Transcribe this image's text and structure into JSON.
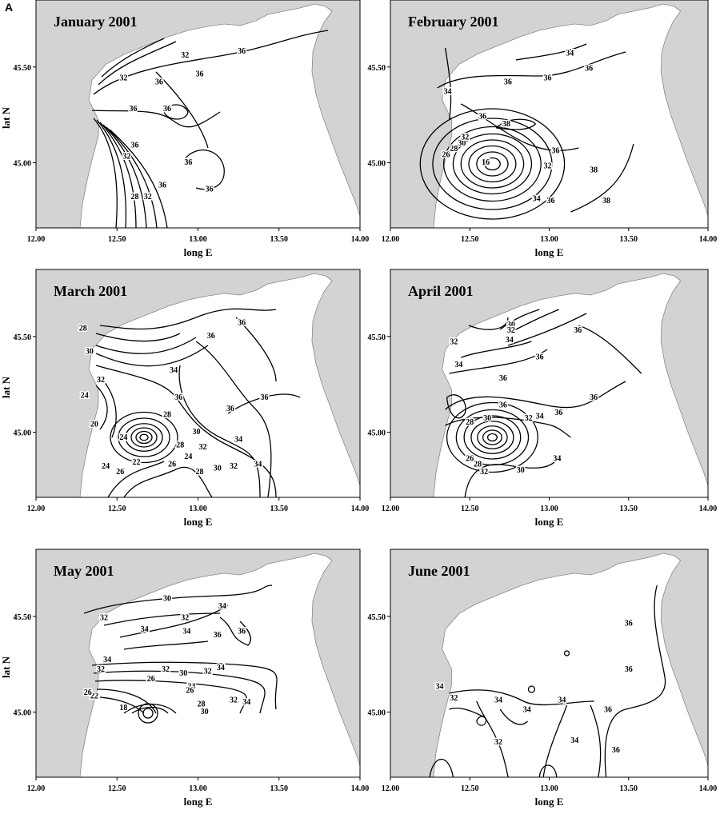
{
  "figure_label": "A",
  "axes": {
    "x_label": "long E",
    "y_label": "lat N",
    "xlim": [
      12,
      14
    ],
    "ylim": [
      44.66,
      45.85
    ],
    "xticks": [
      {
        "value": 12,
        "label": "12.00"
      },
      {
        "value": 12.5,
        "label": "12.50"
      },
      {
        "value": 13,
        "label": "13.00"
      },
      {
        "value": 13.5,
        "label": "13.50"
      },
      {
        "value": 14,
        "label": "14.00"
      }
    ],
    "yticks": [
      {
        "value": 45.5,
        "label": "45.50"
      },
      {
        "value": 45,
        "label": "45.00"
      }
    ]
  },
  "panels": [
    {
      "title": "January 2001",
      "contour_labels": [
        {
          "level": 36,
          "lon": 13.27,
          "lat": 45.58
        },
        {
          "level": 32,
          "lon": 12.92,
          "lat": 45.56
        },
        {
          "level": 36,
          "lon": 13.01,
          "lat": 45.46
        },
        {
          "level": 32,
          "lon": 12.54,
          "lat": 45.44
        },
        {
          "level": 36,
          "lon": 12.76,
          "lat": 45.42
        },
        {
          "level": 36,
          "lon": 12.6,
          "lat": 45.28
        },
        {
          "level": 36,
          "lon": 12.81,
          "lat": 45.28
        },
        {
          "level": 36,
          "lon": 12.61,
          "lat": 45.09
        },
        {
          "level": 32,
          "lon": 12.56,
          "lat": 45.03
        },
        {
          "level": 36,
          "lon": 12.94,
          "lat": 45.0
        },
        {
          "level": 36,
          "lon": 13.07,
          "lat": 44.86
        },
        {
          "level": 36,
          "lon": 12.78,
          "lat": 44.88
        },
        {
          "level": 28,
          "lon": 12.61,
          "lat": 44.82
        },
        {
          "level": 32,
          "lon": 12.69,
          "lat": 44.82
        }
      ]
    },
    {
      "title": "February 2001",
      "contour_labels": [
        {
          "level": 34,
          "lon": 13.13,
          "lat": 45.57
        },
        {
          "level": 36,
          "lon": 13.25,
          "lat": 45.49
        },
        {
          "level": 36,
          "lon": 12.99,
          "lat": 45.44
        },
        {
          "level": 36,
          "lon": 12.74,
          "lat": 45.42
        },
        {
          "level": 34,
          "lon": 12.36,
          "lat": 45.37
        },
        {
          "level": 38,
          "lon": 12.73,
          "lat": 45.2
        },
        {
          "level": 36,
          "lon": 12.58,
          "lat": 45.24
        },
        {
          "level": 36,
          "lon": 13.04,
          "lat": 45.06
        },
        {
          "level": 32,
          "lon": 12.99,
          "lat": 44.98
        },
        {
          "level": 38,
          "lon": 13.28,
          "lat": 44.96
        },
        {
          "level": 38,
          "lon": 13.36,
          "lat": 44.8
        },
        {
          "level": 36,
          "lon": 13.01,
          "lat": 44.8
        },
        {
          "level": 34,
          "lon": 12.92,
          "lat": 44.81
        },
        {
          "level": 16,
          "lon": 12.6,
          "lat": 45.0
        },
        {
          "level": 30,
          "lon": 12.45,
          "lat": 45.1
        },
        {
          "level": 28,
          "lon": 12.4,
          "lat": 45.07
        },
        {
          "level": 26,
          "lon": 12.35,
          "lat": 45.04
        },
        {
          "level": 32,
          "lon": 12.47,
          "lat": 45.13
        }
      ]
    },
    {
      "title": "March 2001",
      "contour_labels": [
        {
          "level": 36,
          "lon": 13.27,
          "lat": 45.57
        },
        {
          "level": 36,
          "lon": 13.08,
          "lat": 45.5
        },
        {
          "level": 30,
          "lon": 12.33,
          "lat": 45.42
        },
        {
          "level": 28,
          "lon": 12.29,
          "lat": 45.54
        },
        {
          "level": 34,
          "lon": 12.85,
          "lat": 45.32
        },
        {
          "level": 36,
          "lon": 12.88,
          "lat": 45.18
        },
        {
          "level": 36,
          "lon": 13.2,
          "lat": 45.12
        },
        {
          "level": 36,
          "lon": 13.41,
          "lat": 45.18
        },
        {
          "level": 32,
          "lon": 12.4,
          "lat": 45.27
        },
        {
          "level": 24,
          "lon": 12.3,
          "lat": 45.19
        },
        {
          "level": 34,
          "lon": 13.25,
          "lat": 44.96
        },
        {
          "level": 32,
          "lon": 13.03,
          "lat": 44.92
        },
        {
          "level": 30,
          "lon": 12.99,
          "lat": 45.0
        },
        {
          "level": 28,
          "lon": 12.89,
          "lat": 44.93
        },
        {
          "level": 28,
          "lon": 12.81,
          "lat": 45.09
        },
        {
          "level": 24,
          "lon": 12.54,
          "lat": 44.97
        },
        {
          "level": 22,
          "lon": 12.62,
          "lat": 44.84
        },
        {
          "level": 24,
          "lon": 12.94,
          "lat": 44.87
        },
        {
          "level": 26,
          "lon": 12.84,
          "lat": 44.83
        },
        {
          "level": 28,
          "lon": 13.01,
          "lat": 44.79
        },
        {
          "level": 30,
          "lon": 13.12,
          "lat": 44.81
        },
        {
          "level": 32,
          "lon": 13.22,
          "lat": 44.82
        },
        {
          "level": 34,
          "lon": 13.37,
          "lat": 44.83
        },
        {
          "level": 24,
          "lon": 12.43,
          "lat": 44.82
        },
        {
          "level": 26,
          "lon": 12.52,
          "lat": 44.79
        },
        {
          "level": 20,
          "lon": 12.36,
          "lat": 45.04
        }
      ]
    },
    {
      "title": "April 2001",
      "contour_labels": [
        {
          "level": 30,
          "lon": 12.76,
          "lat": 45.56
        },
        {
          "level": 32,
          "lon": 12.76,
          "lat": 45.53
        },
        {
          "level": 34,
          "lon": 12.75,
          "lat": 45.48
        },
        {
          "level": 36,
          "lon": 12.94,
          "lat": 45.39
        },
        {
          "level": 36,
          "lon": 13.18,
          "lat": 45.53
        },
        {
          "level": 32,
          "lon": 12.4,
          "lat": 45.47
        },
        {
          "level": 34,
          "lon": 12.43,
          "lat": 45.35
        },
        {
          "level": 36,
          "lon": 12.71,
          "lat": 45.28
        },
        {
          "level": 36,
          "lon": 12.71,
          "lat": 45.14
        },
        {
          "level": 36,
          "lon": 13.06,
          "lat": 45.1
        },
        {
          "level": 36,
          "lon": 13.28,
          "lat": 45.18
        },
        {
          "level": 30,
          "lon": 12.61,
          "lat": 45.07
        },
        {
          "level": 32,
          "lon": 12.87,
          "lat": 45.07
        },
        {
          "level": 34,
          "lon": 12.94,
          "lat": 45.08
        },
        {
          "level": 28,
          "lon": 12.5,
          "lat": 45.05
        },
        {
          "level": 28,
          "lon": 12.55,
          "lat": 44.83
        },
        {
          "level": 32,
          "lon": 12.59,
          "lat": 44.79
        },
        {
          "level": 30,
          "lon": 12.82,
          "lat": 44.8
        },
        {
          "level": 34,
          "lon": 13.05,
          "lat": 44.86
        },
        {
          "level": 26,
          "lon": 12.5,
          "lat": 44.86
        }
      ]
    },
    {
      "title": "May 2001",
      "contour_labels": [
        {
          "level": 32,
          "lon": 12.42,
          "lat": 45.49
        },
        {
          "level": 30,
          "lon": 12.81,
          "lat": 45.59
        },
        {
          "level": 32,
          "lon": 12.92,
          "lat": 45.49
        },
        {
          "level": 34,
          "lon": 13.15,
          "lat": 45.55
        },
        {
          "level": 34,
          "lon": 12.67,
          "lat": 45.43
        },
        {
          "level": 34,
          "lon": 12.93,
          "lat": 45.42
        },
        {
          "level": 36,
          "lon": 13.12,
          "lat": 45.4
        },
        {
          "level": 36,
          "lon": 13.27,
          "lat": 45.42
        },
        {
          "level": 34,
          "lon": 12.44,
          "lat": 45.27
        },
        {
          "level": 32,
          "lon": 12.4,
          "lat": 45.22
        },
        {
          "level": 34,
          "lon": 13.14,
          "lat": 45.23
        },
        {
          "level": 32,
          "lon": 13.06,
          "lat": 45.21
        },
        {
          "level": 30,
          "lon": 12.91,
          "lat": 45.2
        },
        {
          "level": 32,
          "lon": 12.8,
          "lat": 45.22
        },
        {
          "level": 26,
          "lon": 12.71,
          "lat": 45.17
        },
        {
          "level": 24,
          "lon": 12.96,
          "lat": 45.13
        },
        {
          "level": 26,
          "lon": 12.95,
          "lat": 45.11
        },
        {
          "level": 28,
          "lon": 13.02,
          "lat": 45.04
        },
        {
          "level": 30,
          "lon": 13.04,
          "lat": 45.0
        },
        {
          "level": 32,
          "lon": 13.22,
          "lat": 45.06
        },
        {
          "level": 34,
          "lon": 13.3,
          "lat": 45.05
        },
        {
          "level": 18,
          "lon": 12.54,
          "lat": 45.02
        },
        {
          "level": 22,
          "lon": 12.36,
          "lat": 45.08
        },
        {
          "level": 26,
          "lon": 12.32,
          "lat": 45.1
        }
      ]
    },
    {
      "title": "June 2001",
      "contour_labels": [
        {
          "level": 36,
          "lon": 13.5,
          "lat": 45.46
        },
        {
          "level": 36,
          "lon": 13.5,
          "lat": 45.22
        },
        {
          "level": 36,
          "lon": 13.37,
          "lat": 45.01
        },
        {
          "level": 36,
          "lon": 13.42,
          "lat": 44.8
        },
        {
          "level": 34,
          "lon": 12.31,
          "lat": 45.13
        },
        {
          "level": 32,
          "lon": 12.4,
          "lat": 45.07
        },
        {
          "level": 34,
          "lon": 12.68,
          "lat": 45.06
        },
        {
          "level": 34,
          "lon": 12.86,
          "lat": 45.01
        },
        {
          "level": 34,
          "lon": 13.08,
          "lat": 45.06
        },
        {
          "level": 32,
          "lon": 12.68,
          "lat": 44.84
        },
        {
          "level": 34,
          "lon": 13.16,
          "lat": 44.85
        }
      ]
    }
  ]
}
